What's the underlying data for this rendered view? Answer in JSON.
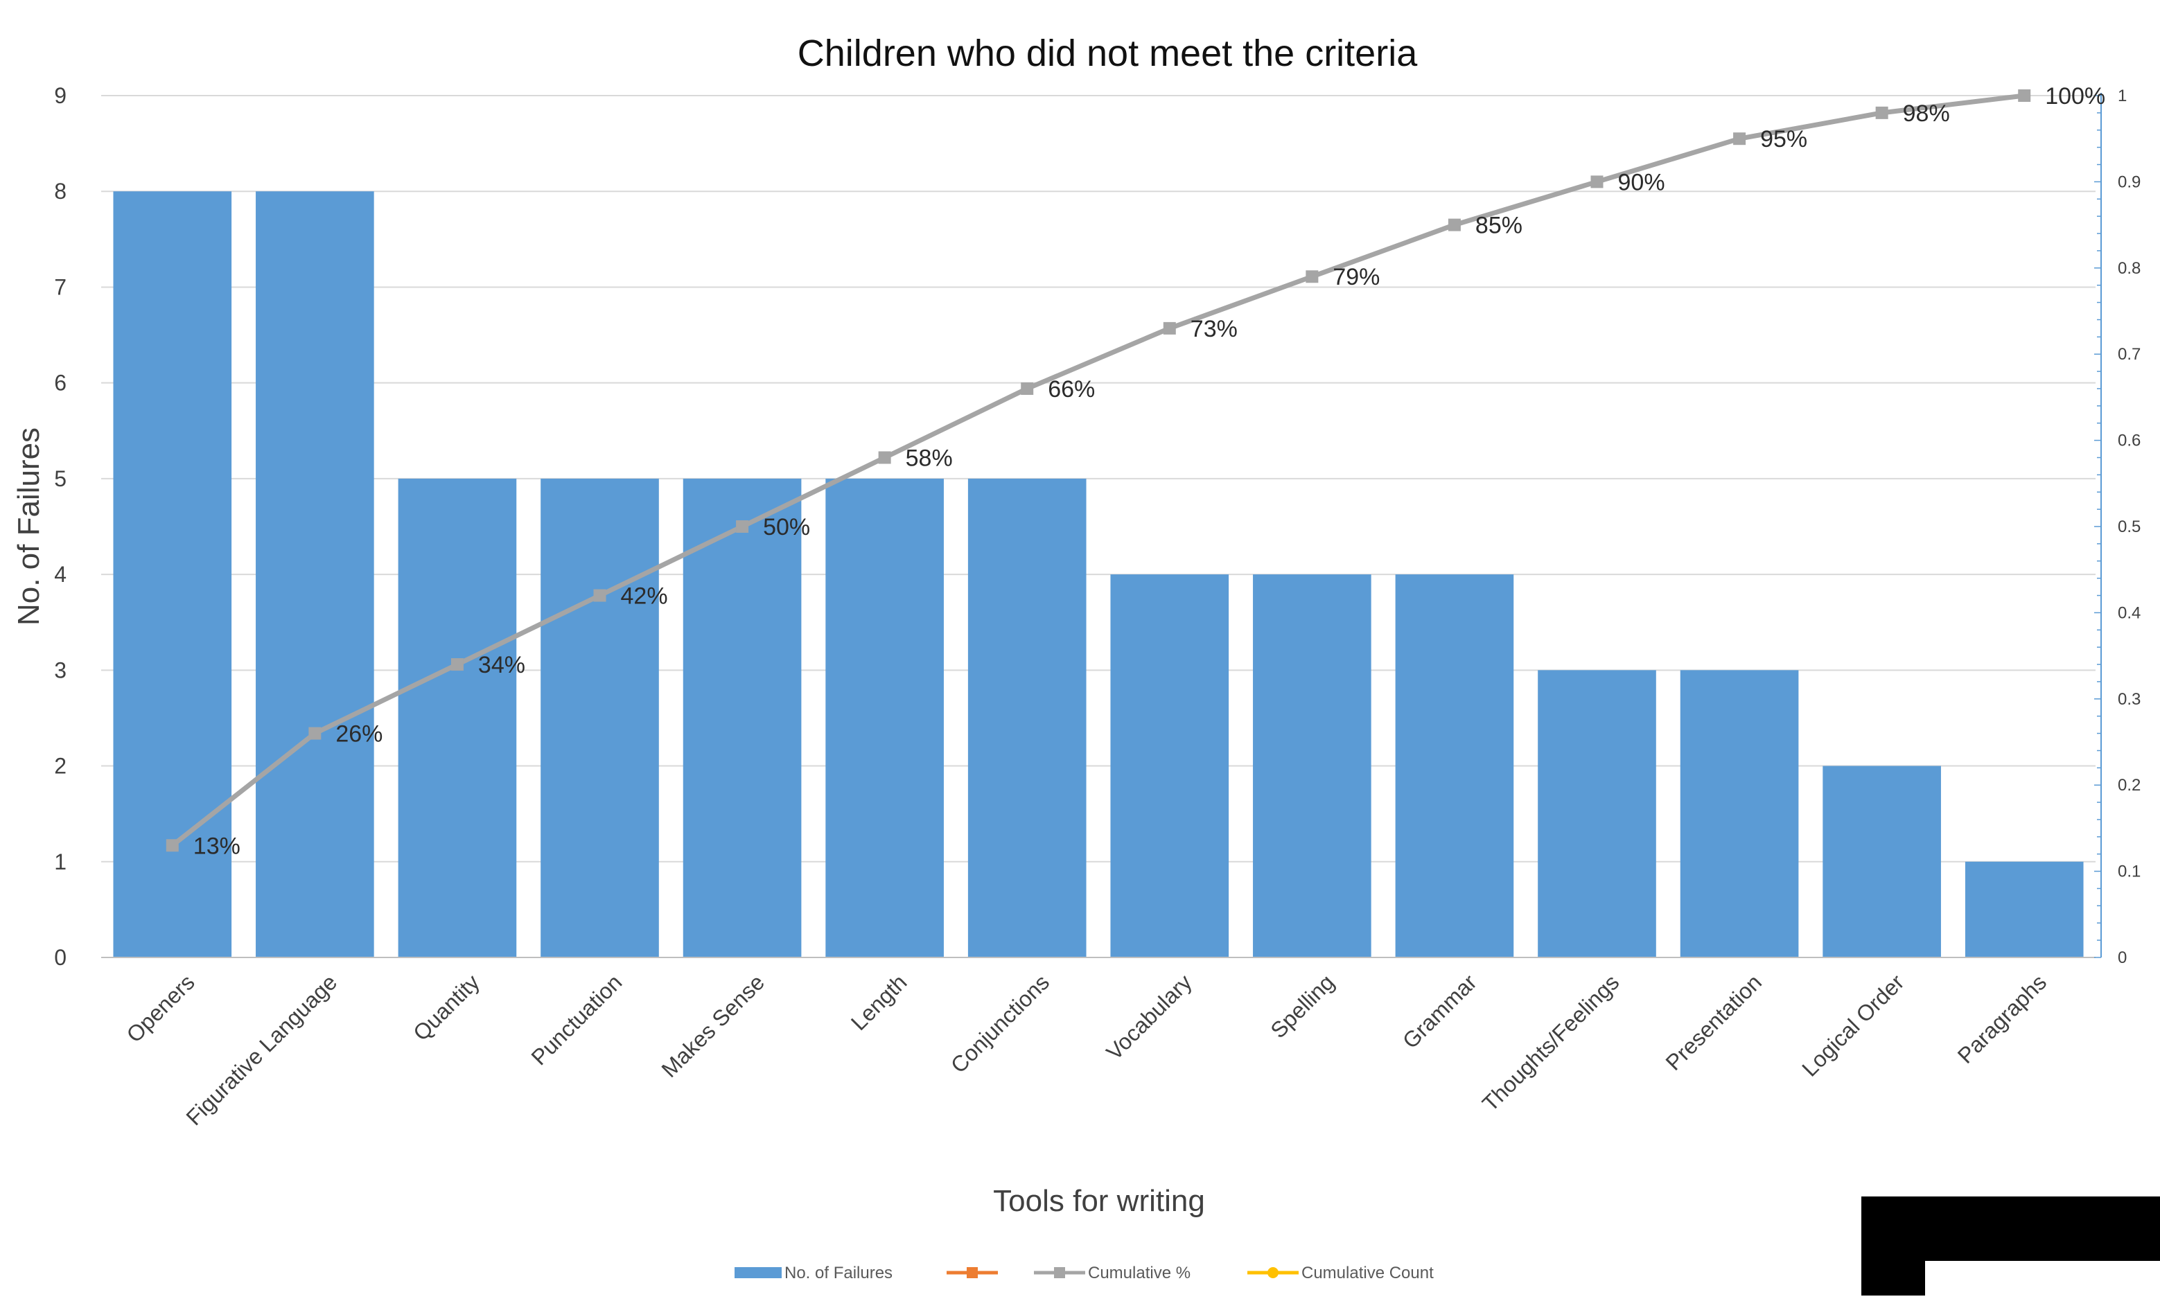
{
  "chart_data": {
    "type": "bar",
    "title": "Children who did not meet the criteria",
    "xlabel": "Tools for writing",
    "ylabel": "No. of Failures",
    "categories": [
      "Openers",
      "Figurative Language",
      "Quantity",
      "Punctuation",
      "Makes Sense",
      "Length",
      "Conjunctions",
      "Vocabulary",
      "Spelling",
      "Grammar",
      "Thoughts/Feelings",
      "Presentation",
      "Logical Order",
      "Paragraphs"
    ],
    "series": [
      {
        "name": "No. of Failures",
        "type": "bar",
        "axis": "left",
        "color": "#5b9bd5",
        "values": [
          8,
          8,
          5,
          5,
          5,
          5,
          5,
          4,
          4,
          4,
          3,
          3,
          2,
          1
        ]
      },
      {
        "name": "Cumulative %",
        "type": "line",
        "axis": "right",
        "color": "#a5a5a5",
        "values": [
          0.13,
          0.26,
          0.34,
          0.42,
          0.5,
          0.58,
          0.66,
          0.73,
          0.79,
          0.85,
          0.9,
          0.95,
          0.98,
          1.0
        ]
      }
    ],
    "point_labels": [
      "13%",
      "26%",
      "34%",
      "42%",
      "50%",
      "58%",
      "66%",
      "73%",
      "79%",
      "85%",
      "90%",
      "95%",
      "98%",
      "100%"
    ],
    "ylim": [
      0,
      9
    ],
    "yticks": [
      "0",
      "1",
      "2",
      "3",
      "4",
      "5",
      "6",
      "7",
      "8",
      "9"
    ],
    "y2lim": [
      0,
      1
    ],
    "y2ticks": [
      "0",
      "0.1",
      "0.2",
      "0.3",
      "0.4",
      "0.5",
      "0.6",
      "0.7",
      "0.8",
      "0.9",
      "1"
    ],
    "grid": true,
    "legend": {
      "position": "bottom",
      "entries": [
        {
          "label": "No. of Failures",
          "color": "#5b9bd5",
          "marker": "bar"
        },
        {
          "label": "",
          "color": "#ed7d31",
          "marker": "line"
        },
        {
          "label": "Cumulative %",
          "color": "#a5a5a5",
          "marker": "line"
        },
        {
          "label": "Cumulative Count",
          "color": "#ffc000",
          "marker": "line"
        }
      ]
    }
  }
}
